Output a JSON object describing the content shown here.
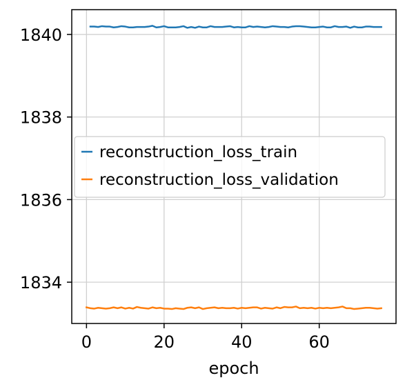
{
  "chart_data": {
    "type": "line",
    "xlabel": "epoch",
    "ylabel": "",
    "xlim": [
      -3.8,
      79.8
    ],
    "ylim": [
      1833.0,
      1840.6
    ],
    "x_ticks": [
      0,
      20,
      40,
      60
    ],
    "y_ticks": [
      1834,
      1836,
      1838,
      1840
    ],
    "x_tick_labels": [
      "0",
      "20",
      "40",
      "60"
    ],
    "y_tick_labels": [
      "1834",
      "1836",
      "1838",
      "1840"
    ],
    "grid": true,
    "legend_position": "center-left",
    "series": [
      {
        "name": "reconstruction_loss_train",
        "color": "#1f77b4",
        "x": [
          1,
          2,
          3,
          4,
          5,
          6,
          7,
          8,
          9,
          10,
          11,
          12,
          13,
          14,
          15,
          16,
          17,
          18,
          19,
          20,
          21,
          22,
          23,
          24,
          25,
          26,
          27,
          28,
          29,
          30,
          31,
          32,
          33,
          34,
          35,
          36,
          37,
          38,
          39,
          40,
          41,
          42,
          43,
          44,
          45,
          46,
          47,
          48,
          49,
          50,
          51,
          52,
          53,
          54,
          55,
          56,
          57,
          58,
          59,
          60,
          61,
          62,
          63,
          64,
          65,
          66,
          67,
          68,
          69,
          70,
          71,
          72,
          73,
          74,
          75,
          76
        ],
        "values": [
          1840.19,
          1840.19,
          1840.18,
          1840.2,
          1840.19,
          1840.19,
          1840.17,
          1840.18,
          1840.2,
          1840.19,
          1840.17,
          1840.17,
          1840.18,
          1840.18,
          1840.18,
          1840.19,
          1840.21,
          1840.17,
          1840.18,
          1840.2,
          1840.17,
          1840.17,
          1840.17,
          1840.18,
          1840.2,
          1840.16,
          1840.18,
          1840.16,
          1840.19,
          1840.17,
          1840.17,
          1840.2,
          1840.18,
          1840.18,
          1840.18,
          1840.19,
          1840.2,
          1840.17,
          1840.18,
          1840.17,
          1840.17,
          1840.2,
          1840.18,
          1840.19,
          1840.18,
          1840.17,
          1840.18,
          1840.2,
          1840.19,
          1840.18,
          1840.18,
          1840.17,
          1840.19,
          1840.2,
          1840.2,
          1840.19,
          1840.18,
          1840.17,
          1840.17,
          1840.18,
          1840.19,
          1840.17,
          1840.17,
          1840.2,
          1840.18,
          1840.18,
          1840.19,
          1840.16,
          1840.19,
          1840.17,
          1840.17,
          1840.19,
          1840.19,
          1840.18,
          1840.18,
          1840.18
        ]
      },
      {
        "name": "reconstruction_loss_validation",
        "color": "#ff7f0e",
        "x": [
          0,
          1,
          2,
          3,
          4,
          5,
          6,
          7,
          8,
          9,
          10,
          11,
          12,
          13,
          14,
          15,
          16,
          17,
          18,
          19,
          20,
          21,
          22,
          23,
          24,
          25,
          26,
          27,
          28,
          29,
          30,
          31,
          32,
          33,
          34,
          35,
          36,
          37,
          38,
          39,
          40,
          41,
          42,
          43,
          44,
          45,
          46,
          47,
          48,
          49,
          50,
          51,
          52,
          53,
          54,
          55,
          56,
          57,
          58,
          59,
          60,
          61,
          62,
          63,
          64,
          65,
          66,
          67,
          68,
          69,
          70,
          71,
          72,
          73,
          74,
          75,
          76
        ],
        "values": [
          1833.39,
          1833.37,
          1833.36,
          1833.38,
          1833.37,
          1833.36,
          1833.37,
          1833.39,
          1833.37,
          1833.39,
          1833.36,
          1833.38,
          1833.36,
          1833.4,
          1833.38,
          1833.37,
          1833.36,
          1833.39,
          1833.37,
          1833.38,
          1833.36,
          1833.36,
          1833.35,
          1833.37,
          1833.36,
          1833.35,
          1833.38,
          1833.39,
          1833.37,
          1833.39,
          1833.35,
          1833.37,
          1833.38,
          1833.39,
          1833.37,
          1833.38,
          1833.37,
          1833.37,
          1833.38,
          1833.36,
          1833.38,
          1833.37,
          1833.38,
          1833.39,
          1833.39,
          1833.36,
          1833.38,
          1833.37,
          1833.36,
          1833.39,
          1833.37,
          1833.4,
          1833.39,
          1833.39,
          1833.41,
          1833.37,
          1833.38,
          1833.37,
          1833.38,
          1833.36,
          1833.38,
          1833.37,
          1833.38,
          1833.37,
          1833.38,
          1833.39,
          1833.41,
          1833.37,
          1833.37,
          1833.35,
          1833.36,
          1833.37,
          1833.38,
          1833.38,
          1833.37,
          1833.36,
          1833.37
        ]
      }
    ]
  }
}
